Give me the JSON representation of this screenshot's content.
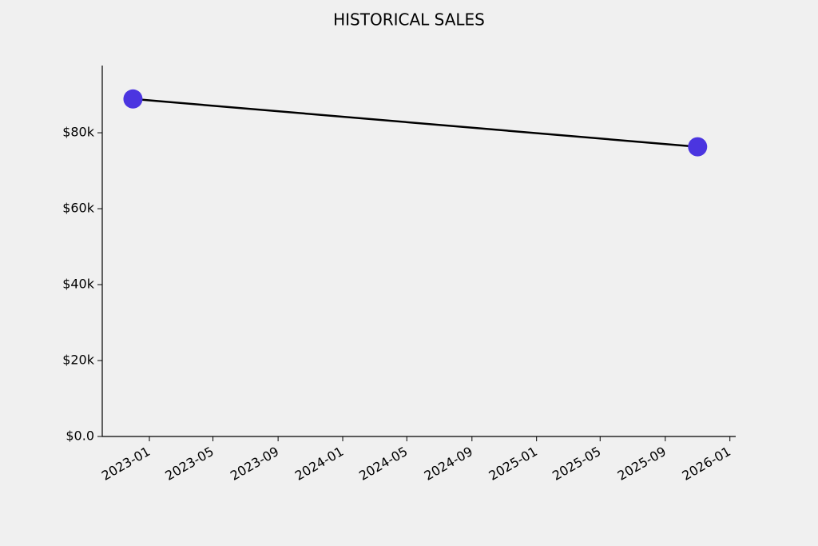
{
  "chart_data": {
    "type": "line",
    "title": "HISTORICAL SALES",
    "x": [
      "2022-12",
      "2025-11"
    ],
    "values": [
      88900,
      76300
    ],
    "color": "#000000",
    "marker_color": "#4b35e0",
    "xlim": [
      "2022-10-04",
      "2026-01-12"
    ],
    "xticks": [
      "2023-01",
      "2023-05",
      "2023-09",
      "2024-01",
      "2024-05",
      "2024-09",
      "2025-01",
      "2025-05",
      "2025-09",
      "2026-01"
    ],
    "ylim": [
      0,
      97700
    ],
    "yticks": [
      {
        "value": 0,
        "label": "$0.0"
      },
      {
        "value": 20000,
        "label": "$20k"
      },
      {
        "value": 40000,
        "label": "$40k"
      },
      {
        "value": 60000,
        "label": "$60k"
      },
      {
        "value": 80000,
        "label": "$80k"
      }
    ],
    "grid": false
  }
}
